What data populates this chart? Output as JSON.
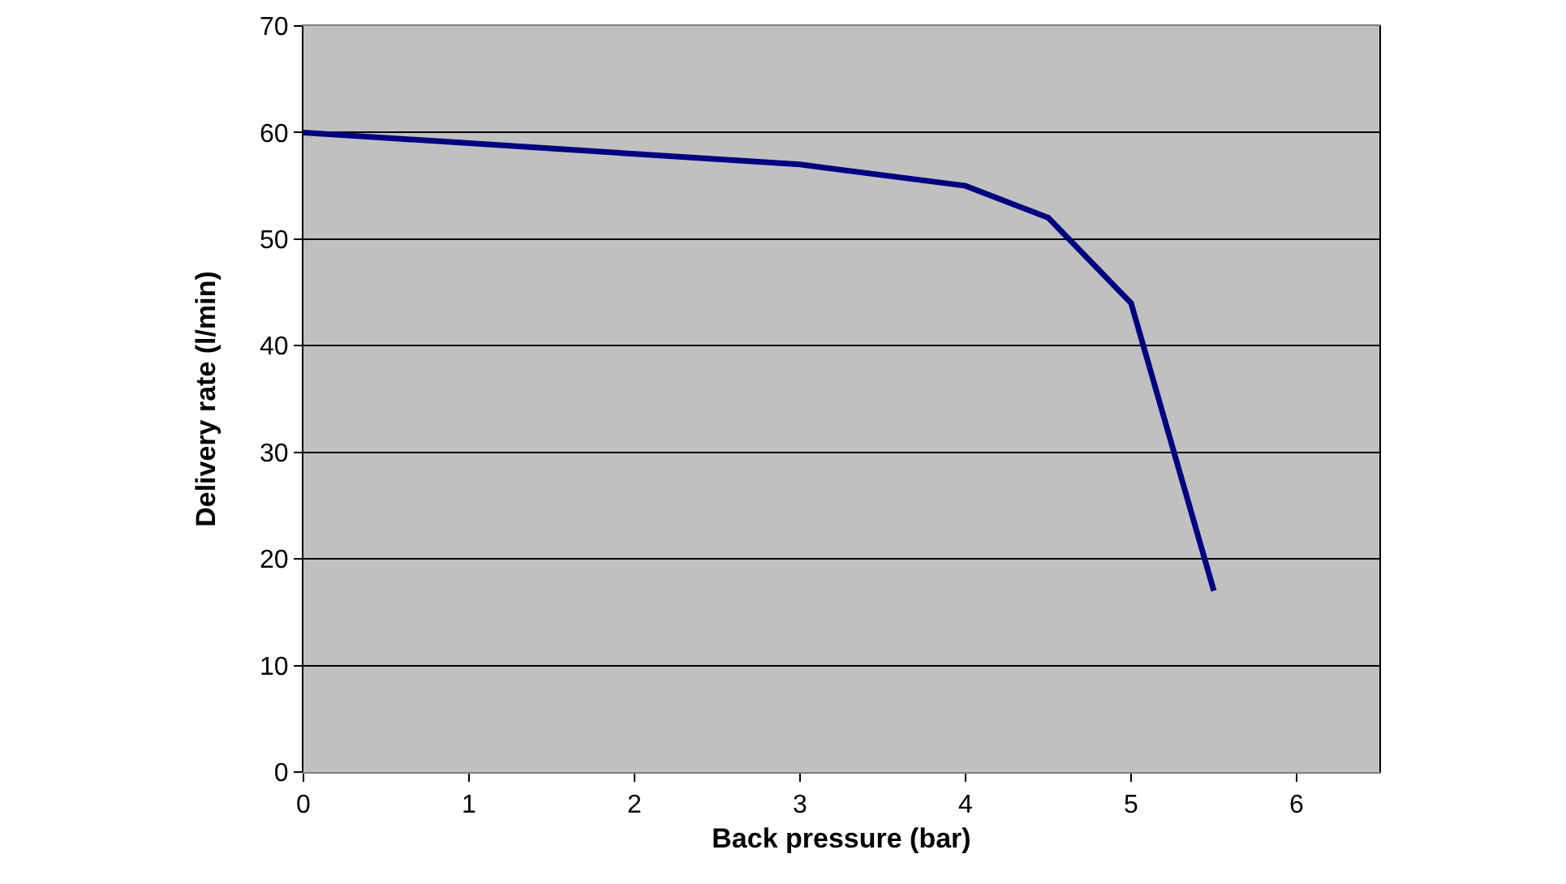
{
  "chart_data": {
    "type": "line",
    "xlabel": "Back pressure (bar)",
    "ylabel": "Delivery rate (l/min)",
    "x": [
      0,
      1,
      2,
      3,
      4,
      4.5,
      5,
      5.5
    ],
    "series": [
      {
        "color": "#000080",
        "values": [
          60,
          59,
          58,
          57,
          55,
          52,
          44,
          17
        ]
      }
    ],
    "xlim": [
      0,
      6.5
    ],
    "xticks": [
      0,
      1,
      2,
      3,
      4,
      5,
      6
    ],
    "ylim": [
      0,
      70
    ],
    "yticks": [
      0,
      10,
      20,
      30,
      40,
      50,
      60,
      70
    ],
    "grid": "y",
    "marker": "none",
    "line_style": "solid"
  }
}
